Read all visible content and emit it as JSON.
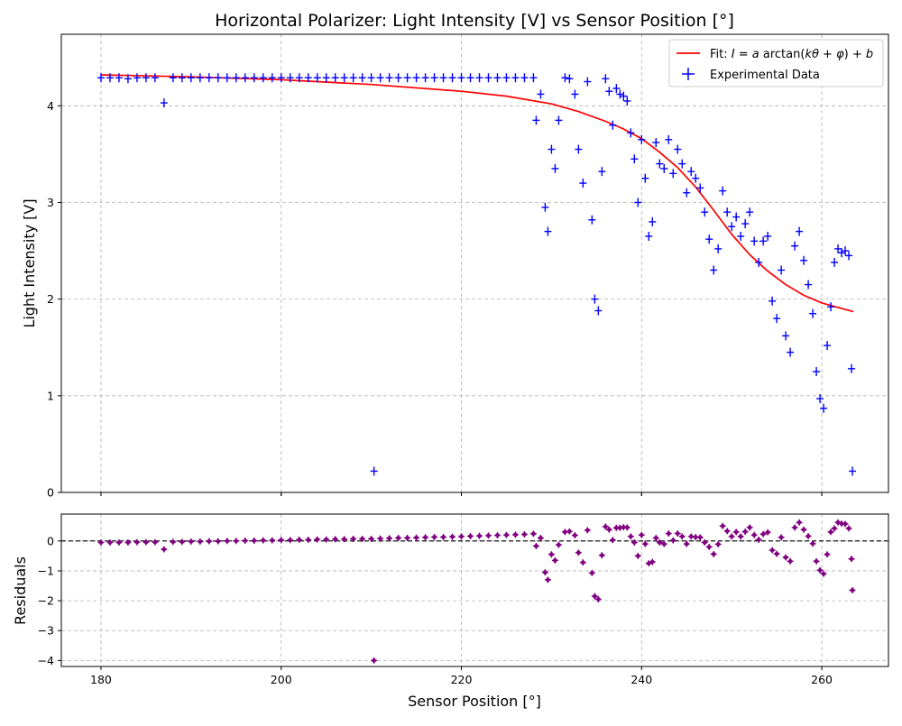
{
  "chart_data": [
    {
      "type": "scatter",
      "title": "Horizontal Polarizer: Light Intensity [V] vs Sensor Position [°]",
      "ylabel": "Light Intensity [V]",
      "xlim": [
        175.6,
        267.4
      ],
      "ylim": [
        0,
        4.74
      ],
      "xticks": [
        180,
        200,
        220,
        240,
        260
      ],
      "yticks": [
        0,
        1,
        2,
        3,
        4
      ],
      "grid": true,
      "legend_position": "top-right",
      "series": [
        {
          "name": "Fit: I = a arctan(kθ + φ) + b",
          "kind": "line",
          "color": "#ff0000",
          "x": [
            180,
            190,
            200,
            210,
            220,
            225,
            230,
            233,
            236,
            238,
            240,
            242,
            244,
            246,
            248,
            250,
            252,
            254,
            256,
            258,
            260,
            263.5
          ],
          "y": [
            4.32,
            4.3,
            4.27,
            4.22,
            4.15,
            4.1,
            4.02,
            3.94,
            3.84,
            3.76,
            3.66,
            3.52,
            3.36,
            3.16,
            2.92,
            2.67,
            2.46,
            2.29,
            2.15,
            2.04,
            1.96,
            1.87
          ]
        },
        {
          "name": "Experimental Data",
          "kind": "errorbar",
          "color": "#0000ff",
          "x": [
            180,
            181,
            182,
            183,
            184,
            185,
            186,
            187,
            188,
            189,
            190,
            191,
            192,
            193,
            194,
            195,
            196,
            197,
            198,
            199,
            200,
            201,
            202,
            203,
            204,
            205,
            206,
            207,
            208,
            209,
            210,
            210.3,
            211,
            212,
            213,
            214,
            215,
            216,
            217,
            218,
            219,
            220,
            221,
            222,
            223,
            224,
            225,
            226,
            227,
            228,
            228.3,
            228.8,
            229.3,
            229.6,
            230,
            230.4,
            230.8,
            231.5,
            232,
            232.6,
            233,
            233.5,
            234,
            234.5,
            234.8,
            235.2,
            235.6,
            236,
            236.4,
            236.8,
            237.2,
            237.6,
            238,
            238.4,
            238.8,
            239.2,
            239.6,
            240,
            240.4,
            240.8,
            241.2,
            241.6,
            242,
            242.5,
            243,
            243.5,
            244,
            244.5,
            245,
            245.5,
            246,
            246.5,
            247,
            247.5,
            248,
            248.5,
            249,
            249.5,
            250,
            250.5,
            251,
            251.5,
            252,
            252.5,
            253,
            253.5,
            254,
            254.5,
            255,
            255.5,
            256,
            256.5,
            257,
            257.5,
            258,
            258.5,
            259,
            259.4,
            259.8,
            260.2,
            260.6,
            261,
            261.4,
            261.8,
            262.2,
            262.6,
            263,
            263.3,
            263.4
          ],
          "y": [
            4.29,
            4.29,
            4.29,
            4.28,
            4.29,
            4.29,
            4.29,
            4.03,
            4.29,
            4.29,
            4.29,
            4.29,
            4.29,
            4.29,
            4.29,
            4.29,
            4.29,
            4.29,
            4.29,
            4.29,
            4.29,
            4.29,
            4.29,
            4.29,
            4.29,
            4.29,
            4.29,
            4.29,
            4.29,
            4.29,
            4.29,
            0.22,
            4.29,
            4.29,
            4.29,
            4.29,
            4.29,
            4.29,
            4.29,
            4.29,
            4.29,
            4.29,
            4.29,
            4.29,
            4.29,
            4.29,
            4.29,
            4.29,
            4.29,
            4.29,
            3.85,
            4.12,
            2.95,
            2.7,
            3.55,
            3.35,
            3.85,
            4.29,
            4.28,
            4.12,
            3.55,
            3.2,
            4.25,
            2.82,
            2.0,
            1.88,
            3.32,
            4.28,
            4.15,
            3.8,
            4.18,
            4.12,
            4.1,
            4.05,
            3.72,
            3.45,
            3.0,
            3.65,
            3.25,
            2.65,
            2.8,
            3.62,
            3.4,
            3.35,
            3.65,
            3.3,
            3.55,
            3.4,
            3.1,
            3.32,
            3.25,
            3.15,
            2.9,
            2.62,
            2.3,
            2.52,
            3.12,
            2.9,
            2.75,
            2.85,
            2.65,
            2.78,
            2.9,
            2.6,
            2.38,
            2.6,
            2.65,
            1.98,
            1.8,
            2.3,
            1.62,
            1.45,
            2.55,
            2.7,
            2.4,
            2.15,
            1.85,
            1.25,
            0.97,
            0.87,
            1.52,
            1.92,
            2.38,
            2.52,
            2.48,
            2.5,
            2.45,
            1.28,
            0.22
          ]
        }
      ]
    },
    {
      "type": "scatter",
      "xlabel": "Sensor Position [°]",
      "ylabel": "Residuals",
      "xlim": [
        175.6,
        267.4
      ],
      "ylim": [
        -4.2,
        0.9
      ],
      "xticks": [
        180,
        200,
        220,
        240,
        260
      ],
      "yticks": [
        0,
        -1,
        -2,
        -3,
        -4
      ],
      "grid": true,
      "reference_line": 0,
      "series": [
        {
          "name": "Residuals",
          "kind": "errorbar",
          "color": "#800080",
          "x": [
            180,
            181,
            182,
            183,
            184,
            185,
            186,
            187,
            188,
            189,
            190,
            191,
            192,
            193,
            194,
            195,
            196,
            197,
            198,
            199,
            200,
            201,
            202,
            203,
            204,
            205,
            206,
            207,
            208,
            209,
            210,
            210.3,
            211,
            212,
            213,
            214,
            215,
            216,
            217,
            218,
            219,
            220,
            221,
            222,
            223,
            224,
            225,
            226,
            227,
            228,
            228.3,
            228.8,
            229.3,
            229.6,
            230,
            230.4,
            230.8,
            231.5,
            232,
            232.6,
            233,
            233.5,
            234,
            234.5,
            234.8,
            235.2,
            235.6,
            236,
            236.4,
            236.8,
            237.2,
            237.6,
            238,
            238.4,
            238.8,
            239.2,
            239.6,
            240,
            240.4,
            240.8,
            241.2,
            241.6,
            242,
            242.5,
            243,
            243.5,
            244,
            244.5,
            245,
            245.5,
            246,
            246.5,
            247,
            247.5,
            248,
            248.5,
            249,
            249.5,
            250,
            250.5,
            251,
            251.5,
            252,
            252.5,
            253,
            253.5,
            254,
            254.5,
            255,
            255.5,
            256,
            256.5,
            257,
            257.5,
            258,
            258.5,
            259,
            259.4,
            259.8,
            260.2,
            260.6,
            261,
            261.4,
            261.8,
            262.2,
            262.6,
            263,
            263.3,
            263.4
          ],
          "y": [
            -0.05,
            -0.05,
            -0.05,
            -0.05,
            -0.04,
            -0.04,
            -0.04,
            -0.28,
            -0.03,
            -0.03,
            -0.02,
            -0.02,
            -0.01,
            -0.01,
            0,
            0,
            0.01,
            0.01,
            0.02,
            0.02,
            0.03,
            0.03,
            0.04,
            0.04,
            0.05,
            0.05,
            0.06,
            0.06,
            0.07,
            0.07,
            0.07,
            -4.0,
            0.08,
            0.09,
            0.1,
            0.1,
            0.11,
            0.12,
            0.13,
            0.13,
            0.14,
            0.15,
            0.16,
            0.17,
            0.18,
            0.19,
            0.2,
            0.21,
            0.22,
            0.24,
            -0.17,
            0.1,
            -1.05,
            -1.3,
            -0.45,
            -0.65,
            -0.13,
            0.3,
            0.32,
            0.19,
            -0.39,
            -0.72,
            0.36,
            -1.07,
            -1.85,
            -1.95,
            -0.48,
            0.48,
            0.38,
            0.03,
            0.44,
            0.44,
            0.46,
            0.45,
            0.15,
            -0.05,
            -0.5,
            0.2,
            -0.1,
            -0.75,
            -0.7,
            0.1,
            -0.05,
            -0.1,
            0.25,
            0.02,
            0.25,
            0.15,
            -0.1,
            0.15,
            0.13,
            0.12,
            -0.05,
            -0.2,
            -0.44,
            -0.11,
            0.5,
            0.33,
            0.15,
            0.3,
            0.15,
            0.31,
            0.45,
            0.2,
            0.04,
            0.23,
            0.29,
            -0.31,
            -0.43,
            0.12,
            -0.55,
            -0.68,
            0.45,
            0.62,
            0.38,
            0.16,
            -0.09,
            -0.68,
            -0.98,
            -1.1,
            -0.45,
            0.3,
            0.42,
            0.62,
            0.58,
            0.57,
            0.42,
            -0.6,
            -1.65
          ]
        }
      ]
    }
  ],
  "legend": {
    "fit_prefix": "Fit: ",
    "fit_formula_parts": [
      "I",
      " = ",
      "a",
      " arctan(",
      "kθ",
      " + ",
      "φ",
      ") + ",
      "b"
    ],
    "data_label": "Experimental Data"
  },
  "colors": {
    "fit": "#ff0000",
    "data": "#0000ff",
    "residuals": "#800080",
    "grid": "#b0b0b0",
    "reference_line": "#000000"
  }
}
